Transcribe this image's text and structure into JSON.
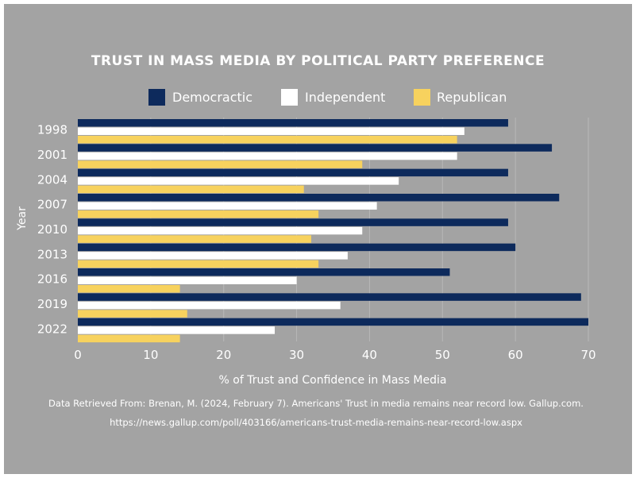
{
  "chart_data": {
    "type": "bar",
    "orientation": "horizontal",
    "title": "TRUST IN MASS MEDIA BY POLITICAL PARTY PREFERENCE",
    "xlabel": "% of Trust and Confidence in Mass Media",
    "ylabel": "Year",
    "categories": [
      "1998",
      "2001",
      "2004",
      "2007",
      "2010",
      "2013",
      "2016",
      "2019",
      "2022"
    ],
    "series": [
      {
        "name": "Democractic",
        "color": "#0d2a5c",
        "values": [
          59,
          65,
          59,
          66,
          59,
          60,
          51,
          69,
          70
        ]
      },
      {
        "name": "Independent",
        "color": "#ffffff",
        "values": [
          53,
          52,
          44,
          41,
          39,
          37,
          30,
          36,
          27
        ]
      },
      {
        "name": "Republican",
        "color": "#f7d25e",
        "values": [
          52,
          39,
          31,
          33,
          32,
          33,
          14,
          15,
          14
        ]
      }
    ],
    "xlim": [
      0,
      70
    ],
    "xticks": [
      "0",
      "10",
      "20",
      "30",
      "40",
      "50",
      "60",
      "70"
    ],
    "grid": true,
    "legend_position": "top"
  },
  "source": {
    "line1": "Data Retrieved From: Brenan, M. (2024, February 7). Americans' Trust in media remains near record low. Gallup.com.",
    "line2": "https://news.gallup.com/poll/403166/americans-trust-media-remains-near-record-low.aspx"
  }
}
